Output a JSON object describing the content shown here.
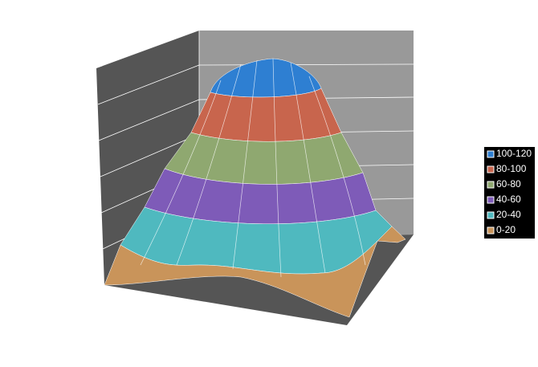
{
  "chart_data": {
    "type": "surface",
    "series": [
      {
        "name": "100-120",
        "color": "#2e7fd2"
      },
      {
        "name": "80-100",
        "color": "#c8654d"
      },
      {
        "name": "60-80",
        "color": "#8fa870"
      },
      {
        "name": "40-60",
        "color": "#7e5bb8"
      },
      {
        "name": "20-40",
        "color": "#4fb9bf"
      },
      {
        "name": "0-20",
        "color": "#c9945a"
      }
    ],
    "legend": "right"
  }
}
